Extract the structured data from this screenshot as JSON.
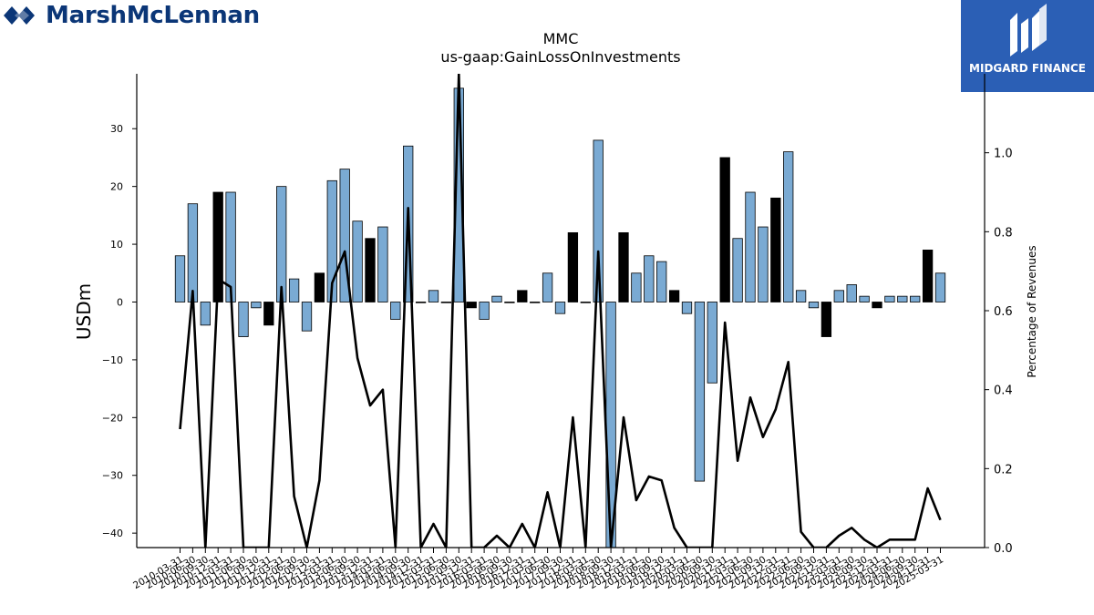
{
  "brand_left": "MarshMcLennan",
  "brand_right": "MIDGARD FINANCE",
  "chart_data": {
    "type": "bar",
    "title": "MMC",
    "subtitle": "us-gaap:GainLossOnInvestments",
    "ylabel": "USDm",
    "y2label": "Percentage of Revenues",
    "ylim": [
      -42.5,
      39.5
    ],
    "y2lim": [
      0.0,
      1.2
    ],
    "yticks": [
      -40,
      -30,
      -20,
      -10,
      0,
      10,
      20,
      30
    ],
    "y2ticks": [
      0.0,
      0.2,
      0.4,
      0.6,
      0.8,
      1.0
    ],
    "colors": {
      "bar_default": "#7aaad3",
      "bar_highlight": "#000000",
      "line": "#000000"
    },
    "categories": [
      "2010-03-31",
      "2010-06-30",
      "2010-09-30",
      "2010-12-31",
      "2011-03-31",
      "2011-06-30",
      "2011-09-30",
      "2011-12-31",
      "2012-03-31",
      "2012-06-30",
      "2012-09-30",
      "2012-12-31",
      "2013-03-31",
      "2013-06-30",
      "2013-09-30",
      "2013-12-31",
      "2014-03-31",
      "2014-06-30",
      "2014-09-30",
      "2014-12-31",
      "2015-03-31",
      "2015-06-30",
      "2015-09-30",
      "2015-12-31",
      "2016-03-31",
      "2016-06-30",
      "2016-09-30",
      "2016-12-31",
      "2017-03-31",
      "2017-06-30",
      "2017-09-30",
      "2017-12-31",
      "2018-03-31",
      "2018-06-30",
      "2018-09-30",
      "2018-12-31",
      "2019-03-31",
      "2019-06-30",
      "2019-09-30",
      "2019-12-31",
      "2020-03-31",
      "2020-06-30",
      "2020-09-30",
      "2020-12-31",
      "2021-03-31",
      "2021-06-30",
      "2021-09-30",
      "2021-12-31",
      "2022-03-31",
      "2022-06-30",
      "2022-09-30",
      "2022-12-31",
      "2023-03-31",
      "2023-06-30",
      "2023-09-30",
      "2023-12-31",
      "2024-03-31",
      "2024-06-30",
      "2024-09-30",
      "2024-12-31",
      "2025-03-31"
    ],
    "values": [
      8,
      17,
      -4,
      19,
      19,
      -6,
      -1,
      -4,
      20,
      4,
      -5,
      5,
      21,
      23,
      14,
      11,
      13,
      -3,
      27,
      0,
      2,
      0,
      37,
      -1,
      -3,
      1,
      0,
      2,
      0,
      5,
      -2,
      12,
      0,
      28,
      -43,
      12,
      5,
      8,
      7,
      2,
      -2,
      -31,
      -14,
      25,
      11,
      19,
      13,
      18,
      26,
      2,
      -1,
      -6,
      2,
      3,
      1,
      -1,
      1,
      1,
      1,
      9,
      5
    ],
    "highlight": [
      false,
      false,
      false,
      true,
      false,
      false,
      false,
      true,
      false,
      false,
      false,
      true,
      false,
      false,
      false,
      true,
      false,
      false,
      false,
      true,
      false,
      false,
      false,
      true,
      false,
      false,
      false,
      true,
      false,
      false,
      false,
      true,
      false,
      false,
      false,
      true,
      false,
      false,
      false,
      true,
      false,
      false,
      false,
      true,
      false,
      false,
      false,
      true,
      false,
      false,
      false,
      true,
      false,
      false,
      false,
      true,
      false,
      false,
      false,
      true,
      false
    ],
    "series": [
      {
        "name": "",
        "axis": "right",
        "type": "line",
        "values": [
          0.3,
          0.65,
          0.0,
          0.68,
          0.66,
          0.0,
          0.0,
          0.0,
          0.66,
          0.13,
          0.0,
          0.17,
          0.67,
          0.75,
          0.48,
          0.36,
          0.4,
          0.0,
          0.86,
          0.0,
          0.06,
          0.0,
          1.2,
          0.0,
          0.0,
          0.03,
          0.0,
          0.06,
          0.0,
          0.14,
          0.0,
          0.33,
          0.0,
          0.75,
          0.0,
          0.33,
          0.12,
          0.18,
          0.17,
          0.05,
          0.0,
          0.0,
          0.0,
          0.57,
          0.22,
          0.38,
          0.28,
          0.35,
          0.47,
          0.04,
          0.0,
          0.0,
          0.03,
          0.05,
          0.02,
          0.0,
          0.02,
          0.02,
          0.02,
          0.15,
          0.07
        ]
      }
    ]
  }
}
